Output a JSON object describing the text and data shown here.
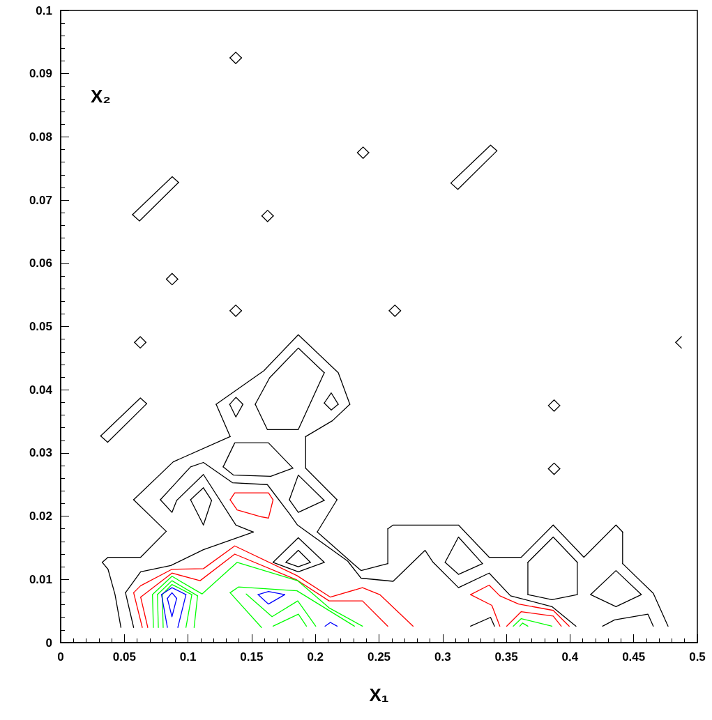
{
  "chart_data": {
    "type": "line",
    "xlabel": "X₁",
    "ylabel": "X₂",
    "xlim": [
      0,
      0.5
    ],
    "ylim": [
      0,
      0.1
    ],
    "xticks": [
      0,
      0.05,
      0.1,
      0.15,
      0.2,
      0.25,
      0.3,
      0.35,
      0.4,
      0.45,
      0.5
    ],
    "yticks": [
      0,
      0.01,
      0.02,
      0.03,
      0.04,
      0.05,
      0.06,
      0.07,
      0.08,
      0.09,
      0.1
    ],
    "grid": false,
    "marker": "none",
    "line_style": "solid",
    "series": [
      {
        "color": "#000000",
        "x": [
          0.0473,
          0.0427,
          0.0372,
          0.0327
        ],
        "values": [
          0.0024,
          0.0076,
          0.0116,
          0.0127
        ]
      },
      {
        "color": "#000000",
        "x": [
          0.0327,
          0.0372,
          0.0628,
          0.0829
        ],
        "values": [
          0.0127,
          0.0135,
          0.0135,
          0.0176
        ]
      },
      {
        "color": "#000000",
        "x": [
          0.0829,
          0.0573
        ],
        "values": [
          0.0176,
          0.0226
        ]
      },
      {
        "color": "#000000",
        "x": [
          0.0573,
          0.0884,
          0.1331
        ],
        "values": [
          0.0226,
          0.0286,
          0.0326
        ]
      },
      {
        "color": "#000000",
        "x": [
          0.1331,
          0.1221
        ],
        "values": [
          0.0326,
          0.0377
        ]
      },
      {
        "color": "#000000",
        "x": [
          0.1221,
          0.1595,
          0.1866,
          0.218,
          0.2271
        ],
        "values": [
          0.0377,
          0.043,
          0.0487,
          0.0427,
          0.0377
        ]
      },
      {
        "color": "#000000",
        "x": [
          0.2271,
          0.2134,
          0.1924
        ],
        "values": [
          0.0377,
          0.0351,
          0.0326
        ]
      },
      {
        "color": "#000000",
        "x": [
          0.1924,
          0.1924
        ],
        "values": [
          0.0326,
          0.0276
        ]
      },
      {
        "color": "#000000",
        "x": [
          0.1924,
          0.217
        ],
        "values": [
          0.0276,
          0.0226
        ]
      },
      {
        "color": "#000000",
        "x": [
          0.217,
          0.2015
        ],
        "values": [
          0.0226,
          0.0175
        ]
      },
      {
        "color": "#000000",
        "x": [
          0.2015,
          0.2359,
          0.2569
        ],
        "values": [
          0.0175,
          0.0114,
          0.0125
        ]
      },
      {
        "color": "#000000",
        "x": [
          0.2569,
          0.2569
        ],
        "values": [
          0.0125,
          0.018
        ]
      },
      {
        "color": "#000000",
        "x": [
          0.2569,
          0.2611,
          0.3124,
          0.3365,
          0.3617,
          0.3868,
          0.4109,
          0.4361,
          0.4413
        ],
        "values": [
          0.018,
          0.0186,
          0.0186,
          0.0135,
          0.0135,
          0.0186,
          0.0135,
          0.0186,
          0.0175
        ]
      },
      {
        "color": "#000000",
        "x": [
          0.4413,
          0.4413
        ],
        "values": [
          0.0175,
          0.0125
        ]
      },
      {
        "color": "#000000",
        "x": [
          0.4413,
          0.4654,
          0.477
        ],
        "values": [
          0.0125,
          0.0078,
          0.0026
        ]
      },
      {
        "color": "#000000",
        "x": [
          0.0573,
          0.0509
        ],
        "values": [
          0.0024,
          0.0079
        ]
      },
      {
        "color": "#000000",
        "x": [
          0.0509,
          0.0628,
          0.0865,
          0.1121,
          0.1513
        ],
        "values": [
          0.0079,
          0.0112,
          0.0122,
          0.0147,
          0.0175
        ]
      },
      {
        "color": "#000000",
        "x": [
          0.1513,
          0.1376,
          0.1121,
          0.0911,
          0.0874,
          0.0783
        ],
        "values": [
          0.0175,
          0.0186,
          0.0266,
          0.0225,
          0.0206,
          0.0226
        ]
      },
      {
        "color": "#000000",
        "x": [
          0.0783,
          0.102,
          0.1121,
          0.1349,
          0.1623,
          0.1796,
          0.186,
          0.2254,
          0.2359,
          0.2611,
          0.2862,
          0.2925,
          0.3124,
          0.3365,
          0.3533,
          0.3858,
          0.4047
        ],
        "values": [
          0.0226,
          0.0278,
          0.0285,
          0.0253,
          0.025,
          0.0204,
          0.0186,
          0.0129,
          0.0102,
          0.0097,
          0.0146,
          0.0127,
          0.0087,
          0.011,
          0.0074,
          0.0057,
          0.0026
        ]
      },
      {
        "color": "#000000",
        "x": [
          0.3219,
          0.3376,
          0.3407
        ],
        "values": [
          0.0026,
          0.004,
          0.0026
        ]
      },
      {
        "color": "#000000",
        "x": [
          0.4256,
          0.435,
          0.4612,
          0.4654
        ],
        "values": [
          0.0026,
          0.0036,
          0.0045,
          0.0026
        ]
      },
      {
        "color": "#000000",
        "x": [
          0.1528,
          0.1623,
          0.1866,
          0.207
        ],
        "values": [
          0.0377,
          0.0337,
          0.0337,
          0.0427
        ]
      },
      {
        "color": "#000000",
        "x": [
          0.1528,
          0.1641,
          0.1866,
          0.207
        ],
        "values": [
          0.0377,
          0.0419,
          0.0466,
          0.0427
        ]
      },
      {
        "color": "#000000",
        "x": [
          0.1327,
          0.1376,
          0.1431
        ],
        "values": [
          0.0377,
          0.0388,
          0.0377
        ]
      },
      {
        "color": "#000000",
        "x": [
          0.1327,
          0.1376,
          0.1431
        ],
        "values": [
          0.0377,
          0.0357,
          0.0377
        ]
      },
      {
        "color": "#000000",
        "x": [
          0.207,
          0.2125,
          0.218
        ],
        "values": [
          0.0379,
          0.0395,
          0.0377
        ]
      },
      {
        "color": "#000000",
        "x": [
          0.207,
          0.2125,
          0.218
        ],
        "values": [
          0.0379,
          0.0368,
          0.0377
        ]
      },
      {
        "color": "#000000",
        "x": [
          0.1276,
          0.1367,
          0.1632,
          0.1824
        ],
        "values": [
          0.0278,
          0.0316,
          0.0316,
          0.0276
        ]
      },
      {
        "color": "#000000",
        "x": [
          0.1276,
          0.1358,
          0.165,
          0.1824
        ],
        "values": [
          0.0278,
          0.0265,
          0.0263,
          0.0276
        ]
      },
      {
        "color": "#000000",
        "x": [
          0.1796,
          0.1866,
          0.207
        ],
        "values": [
          0.0226,
          0.0265,
          0.0225
        ]
      },
      {
        "color": "#000000",
        "x": [
          0.1796,
          0.1866,
          0.207
        ],
        "values": [
          0.0226,
          0.0206,
          0.0225
        ]
      },
      {
        "color": "#000000",
        "x": [
          0.102,
          0.1121,
          0.1185
        ],
        "values": [
          0.0226,
          0.0245,
          0.0225
        ]
      },
      {
        "color": "#000000",
        "x": [
          0.102,
          0.1121,
          0.1185
        ],
        "values": [
          0.0226,
          0.0186,
          0.0225
        ]
      },
      {
        "color": "#000000",
        "x": [
          0.1668,
          0.1866,
          0.207
        ],
        "values": [
          0.0127,
          0.0166,
          0.0127
        ]
      },
      {
        "color": "#000000",
        "x": [
          0.1668,
          0.1866,
          0.207
        ],
        "values": [
          0.0127,
          0.0112,
          0.0127
        ]
      },
      {
        "color": "#000000",
        "x": [
          0.1769,
          0.1866,
          0.1961
        ],
        "values": [
          0.0127,
          0.0146,
          0.0127
        ]
      },
      {
        "color": "#000000",
        "x": [
          0.1769,
          0.1866,
          0.1961
        ],
        "values": [
          0.0127,
          0.012,
          0.0127
        ]
      },
      {
        "color": "#000000",
        "x": [
          0.3019,
          0.3124,
          0.3313
        ],
        "values": [
          0.0127,
          0.0167,
          0.0125
        ]
      },
      {
        "color": "#000000",
        "x": [
          0.3019,
          0.3124,
          0.3313
        ],
        "values": [
          0.0127,
          0.0108,
          0.0125
        ]
      },
      {
        "color": "#000000",
        "x": [
          0.3669,
          0.3868,
          0.4057
        ],
        "values": [
          0.0127,
          0.0167,
          0.0127
        ]
      },
      {
        "color": "#000000",
        "x": [
          0.3669,
          0.3858,
          0.4057
        ],
        "values": [
          0.0076,
          0.0068,
          0.0076
        ]
      },
      {
        "color": "#000000",
        "x": [
          0.3669,
          0.3669
        ],
        "values": [
          0.0076,
          0.0127
        ]
      },
      {
        "color": "#000000",
        "x": [
          0.4057,
          0.4057
        ],
        "values": [
          0.0076,
          0.0127
        ]
      },
      {
        "color": "#000000",
        "x": [
          0.4162,
          0.4361,
          0.456
        ],
        "values": [
          0.0076,
          0.0114,
          0.0076
        ]
      },
      {
        "color": "#000000",
        "x": [
          0.4162,
          0.4361,
          0.456
        ],
        "values": [
          0.0076,
          0.0057,
          0.0076
        ]
      },
      {
        "color": "#000000",
        "x": [
          0.0564,
          0.0876,
          0.0926
        ],
        "values": [
          0.0677,
          0.0737,
          0.0728
        ]
      },
      {
        "color": "#000000",
        "x": [
          0.0564,
          0.0619,
          0.0926
        ],
        "values": [
          0.0677,
          0.0667,
          0.0728
        ]
      },
      {
        "color": "#000000",
        "x": [
          0.0314,
          0.0626,
          0.0676
        ],
        "values": [
          0.0327,
          0.0387,
          0.0378
        ]
      },
      {
        "color": "#000000",
        "x": [
          0.0314,
          0.0369,
          0.0676
        ],
        "values": [
          0.0327,
          0.0317,
          0.0378
        ]
      },
      {
        "color": "#000000",
        "x": [
          0.3064,
          0.3376,
          0.3426
        ],
        "values": [
          0.0727,
          0.0787,
          0.0778
        ]
      },
      {
        "color": "#000000",
        "x": [
          0.3064,
          0.3119,
          0.3426
        ],
        "values": [
          0.0727,
          0.0717,
          0.0778
        ]
      },
      {
        "color": "#000000",
        "x": [
          0.133,
          0.1375,
          0.142
        ],
        "values": [
          0.0925,
          0.0934,
          0.0925
        ]
      },
      {
        "color": "#000000",
        "x": [
          0.133,
          0.1375,
          0.142
        ],
        "values": [
          0.0925,
          0.0916,
          0.0925
        ]
      },
      {
        "color": "#000000",
        "x": [
          0.233,
          0.2375,
          0.242
        ],
        "values": [
          0.0775,
          0.0784,
          0.0775
        ]
      },
      {
        "color": "#000000",
        "x": [
          0.233,
          0.2375,
          0.242
        ],
        "values": [
          0.0775,
          0.0766,
          0.0775
        ]
      },
      {
        "color": "#000000",
        "x": [
          0.158,
          0.1625,
          0.167
        ],
        "values": [
          0.0675,
          0.0684,
          0.0675
        ]
      },
      {
        "color": "#000000",
        "x": [
          0.158,
          0.1625,
          0.167
        ],
        "values": [
          0.0675,
          0.0666,
          0.0675
        ]
      },
      {
        "color": "#000000",
        "x": [
          0.083,
          0.0875,
          0.092
        ],
        "values": [
          0.0575,
          0.0584,
          0.0575
        ]
      },
      {
        "color": "#000000",
        "x": [
          0.083,
          0.0875,
          0.092
        ],
        "values": [
          0.0575,
          0.0566,
          0.0575
        ]
      },
      {
        "color": "#000000",
        "x": [
          0.133,
          0.1375,
          0.142
        ],
        "values": [
          0.0525,
          0.0534,
          0.0525
        ]
      },
      {
        "color": "#000000",
        "x": [
          0.133,
          0.1375,
          0.142
        ],
        "values": [
          0.0525,
          0.0516,
          0.0525
        ]
      },
      {
        "color": "#000000",
        "x": [
          0.258,
          0.2625,
          0.267
        ],
        "values": [
          0.0525,
          0.0534,
          0.0525
        ]
      },
      {
        "color": "#000000",
        "x": [
          0.258,
          0.2625,
          0.267
        ],
        "values": [
          0.0525,
          0.0516,
          0.0525
        ]
      },
      {
        "color": "#000000",
        "x": [
          0.058,
          0.0625,
          0.067
        ],
        "values": [
          0.0475,
          0.0484,
          0.0475
        ]
      },
      {
        "color": "#000000",
        "x": [
          0.058,
          0.0625,
          0.067
        ],
        "values": [
          0.0475,
          0.0466,
          0.0475
        ]
      },
      {
        "color": "#000000",
        "x": [
          0.383,
          0.3875,
          0.392
        ],
        "values": [
          0.0375,
          0.0384,
          0.0375
        ]
      },
      {
        "color": "#000000",
        "x": [
          0.383,
          0.3875,
          0.392
        ],
        "values": [
          0.0375,
          0.0366,
          0.0375
        ]
      },
      {
        "color": "#000000",
        "x": [
          0.383,
          0.3875,
          0.392
        ],
        "values": [
          0.0275,
          0.0284,
          0.0275
        ]
      },
      {
        "color": "#000000",
        "x": [
          0.383,
          0.3875,
          0.392
        ],
        "values": [
          0.0275,
          0.0266,
          0.0275
        ]
      },
      {
        "color": "#000000",
        "x": [
          0.483,
          0.4875
        ],
        "values": [
          0.0475,
          0.0484
        ]
      },
      {
        "color": "#000000",
        "x": [
          0.483,
          0.4875
        ],
        "values": [
          0.0475,
          0.0466
        ]
      },
      {
        "color": "#ff0000",
        "x": [
          0.1331,
          0.1367,
          0.1632,
          0.1668
        ],
        "values": [
          0.0226,
          0.0237,
          0.0237,
          0.0226
        ]
      },
      {
        "color": "#ff0000",
        "x": [
          0.1331,
          0.1386,
          0.1577,
          0.1632,
          0.1668
        ],
        "values": [
          0.0226,
          0.021,
          0.0199,
          0.0197,
          0.0226
        ]
      },
      {
        "color": "#ff0000",
        "x": [
          0.0641,
          0.0573
        ],
        "values": [
          0.0024,
          0.0079
        ]
      },
      {
        "color": "#ff0000",
        "x": [
          0.0573,
          0.0628,
          0.0874,
          0.1121,
          0.1367,
          0.1856,
          0.2118,
          0.237,
          0.2506,
          0.2768
        ],
        "values": [
          0.0079,
          0.009,
          0.0116,
          0.0117,
          0.0153,
          0.0106,
          0.0072,
          0.0087,
          0.0076,
          0.0026
        ]
      },
      {
        "color": "#ff0000",
        "x": [
          0.0684,
          0.0628
        ],
        "values": [
          0.0024,
          0.0072
        ]
      },
      {
        "color": "#ff0000",
        "x": [
          0.0628,
          0.0874,
          0.1095,
          0.1367,
          0.1856,
          0.2108,
          0.237,
          0.2569
        ],
        "values": [
          0.0072,
          0.011,
          0.0098,
          0.014,
          0.0099,
          0.0066,
          0.0066,
          0.0026
        ]
      },
      {
        "color": "#ff0000",
        "x": [
          0.3449,
          0.3386,
          0.3219
        ],
        "values": [
          0.0026,
          0.0059,
          0.0076
        ]
      },
      {
        "color": "#ff0000",
        "x": [
          0.3219,
          0.3365,
          0.3449,
          0.3596,
          0.3868,
          0.3994
        ],
        "values": [
          0.0076,
          0.0091,
          0.0074,
          0.0061,
          0.0051,
          0.0026
        ]
      },
      {
        "color": "#ff0000",
        "x": [
          0.3502,
          0.3617,
          0.3868,
          0.3931
        ],
        "values": [
          0.0026,
          0.0049,
          0.0042,
          0.0026
        ]
      },
      {
        "color": "#00ff00",
        "x": [
          0.3554,
          0.3617,
          0.3858
        ],
        "values": [
          0.0026,
          0.0038,
          0.0026
        ]
      },
      {
        "color": "#00ff00",
        "x": [
          0.3606,
          0.3627,
          0.3669
        ],
        "values": [
          0.0026,
          0.0031,
          0.0026
        ]
      },
      {
        "color": "#00ff00",
        "x": [
          0.0728,
          0.0721,
          0.0874,
          0.111,
          0.1386,
          0.186,
          0.2108,
          0.237
        ],
        "values": [
          0.0024,
          0.0076,
          0.0105,
          0.0077,
          0.0127,
          0.0098,
          0.0055,
          0.0026
        ]
      },
      {
        "color": "#00ff00",
        "x": [
          0.0767,
          0.076
        ],
        "values": [
          0.0024,
          0.0076
        ]
      },
      {
        "color": "#00ff00",
        "x": [
          0.076,
          0.0874,
          0.1075
        ],
        "values": [
          0.0076,
          0.0098,
          0.0074
        ]
      },
      {
        "color": "#00ff00",
        "x": [
          0.1075,
          0.1048
        ],
        "values": [
          0.0074,
          0.0024
        ]
      },
      {
        "color": "#00ff00",
        "x": [
          0.0805,
          0.0798
        ],
        "values": [
          0.0024,
          0.0076
        ]
      },
      {
        "color": "#00ff00",
        "x": [
          0.0798,
          0.0874,
          0.103
        ],
        "values": [
          0.0076,
          0.0092,
          0.0076
        ]
      },
      {
        "color": "#00ff00",
        "x": [
          0.103,
          0.0984
        ],
        "values": [
          0.0076,
          0.0024
        ]
      },
      {
        "color": "#00ff00",
        "x": [
          0.1577,
          0.1331
        ],
        "values": [
          0.0024,
          0.0079
        ]
      },
      {
        "color": "#00ff00",
        "x": [
          0.1331,
          0.1396,
          0.1856,
          0.2307
        ],
        "values": [
          0.0079,
          0.0088,
          0.0082,
          0.0026
        ]
      },
      {
        "color": "#00ff00",
        "x": [
          0.1457,
          0.166,
          0.1862,
          0.2003
        ],
        "values": [
          0.0077,
          0.0041,
          0.0066,
          0.0026
        ]
      },
      {
        "color": "#00ff00",
        "x": [
          0.1668,
          0.1867,
          0.193
        ],
        "values": [
          0.0026,
          0.0045,
          0.0026
        ]
      },
      {
        "color": "#0000ff",
        "x": [
          0.0838,
          0.0792
        ],
        "values": [
          0.0024,
          0.0076
        ]
      },
      {
        "color": "#0000ff",
        "x": [
          0.0792,
          0.0874,
          0.0984
        ],
        "values": [
          0.0076,
          0.0087,
          0.0076
        ]
      },
      {
        "color": "#0000ff",
        "x": [
          0.0984,
          0.092
        ],
        "values": [
          0.0076,
          0.0024
        ]
      },
      {
        "color": "#0000ff",
        "x": [
          0.0838,
          0.0874,
          0.0911
        ],
        "values": [
          0.007,
          0.0079,
          0.007
        ]
      },
      {
        "color": "#0000ff",
        "x": [
          0.0838,
          0.0874,
          0.0911
        ],
        "values": [
          0.007,
          0.0041,
          0.007
        ]
      },
      {
        "color": "#0000ff",
        "x": [
          0.155,
          0.1632,
          0.176
        ],
        "values": [
          0.0076,
          0.0081,
          0.0076
        ]
      },
      {
        "color": "#0000ff",
        "x": [
          0.155,
          0.1632,
          0.176
        ],
        "values": [
          0.0076,
          0.0061,
          0.0076
        ]
      },
      {
        "color": "#0000ff",
        "x": [
          0.2076,
          0.2118,
          0.2171
        ],
        "values": [
          0.0026,
          0.0032,
          0.0026
        ]
      }
    ]
  }
}
